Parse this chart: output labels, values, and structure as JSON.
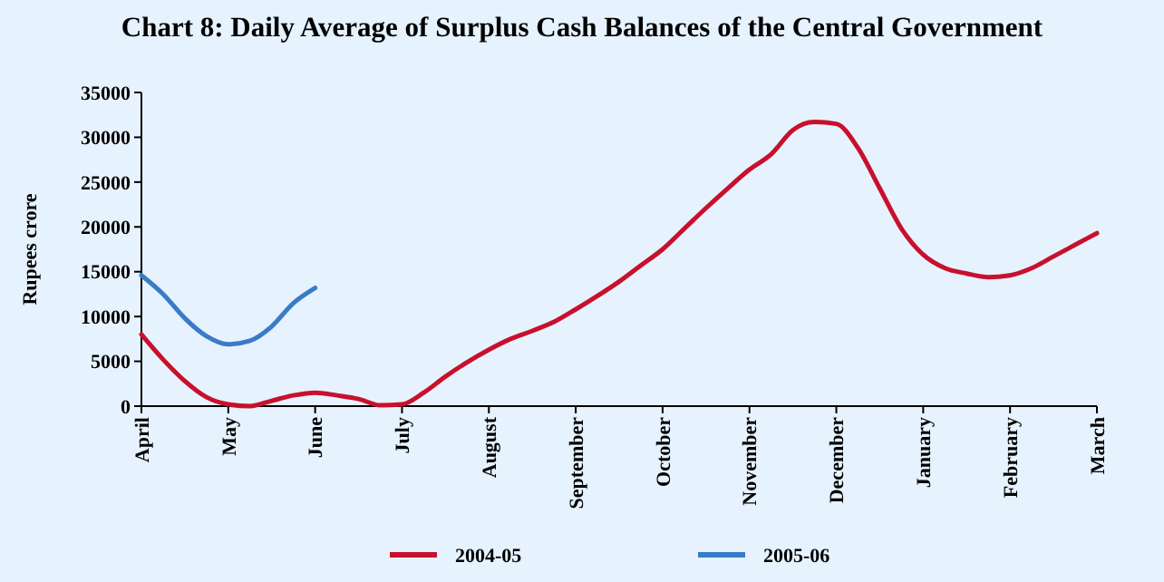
{
  "chart_data": {
    "type": "line",
    "title": "Chart 8: Daily Average of Surplus Cash Balances of the Central Government",
    "ylabel": "Rupees crore",
    "categories": [
      "April",
      null,
      null,
      null,
      "May",
      null,
      null,
      null,
      "June",
      null,
      null,
      null,
      "July",
      null,
      null,
      null,
      "August",
      null,
      null,
      null,
      "September",
      null,
      null,
      null,
      "October",
      null,
      null,
      null,
      "November",
      null,
      null,
      null,
      "December",
      null,
      null,
      null,
      "January",
      null,
      null,
      null,
      "February",
      null,
      null,
      null,
      "March"
    ],
    "ylim": [
      0,
      35000
    ],
    "yticks": [
      0,
      5000,
      10000,
      15000,
      20000,
      25000,
      30000,
      35000
    ],
    "legend": "bottom",
    "marker": "none",
    "line_style": "solid",
    "series": [
      {
        "name": "2004-05",
        "color": "#c8102e",
        "values": [
          8000,
          5200,
          2800,
          1000,
          200,
          0,
          600,
          1200,
          1500,
          1200,
          800,
          100,
          200,
          1500,
          3300,
          4900,
          6300,
          7500,
          8400,
          9400,
          10800,
          12300,
          13900,
          15700,
          17500,
          19800,
          22100,
          24300,
          26400,
          28100,
          30800,
          31700,
          31500,
          28800,
          24300,
          19800,
          16900,
          15400,
          14800,
          14400,
          14600,
          15400,
          16700,
          18000,
          19300
        ]
      },
      {
        "name": "2005-06",
        "color": "#3a7bc8",
        "values": [
          14600,
          12500,
          9800,
          7800,
          6900,
          7300,
          8900,
          11500,
          13200,
          null,
          null,
          null,
          null,
          null,
          null,
          null,
          null,
          null,
          null,
          null,
          null,
          null,
          null,
          null,
          null,
          null,
          null,
          null,
          null,
          null,
          null,
          null,
          null,
          null,
          null,
          null,
          null,
          null,
          null,
          null,
          null,
          null,
          null,
          null,
          null
        ]
      }
    ]
  }
}
